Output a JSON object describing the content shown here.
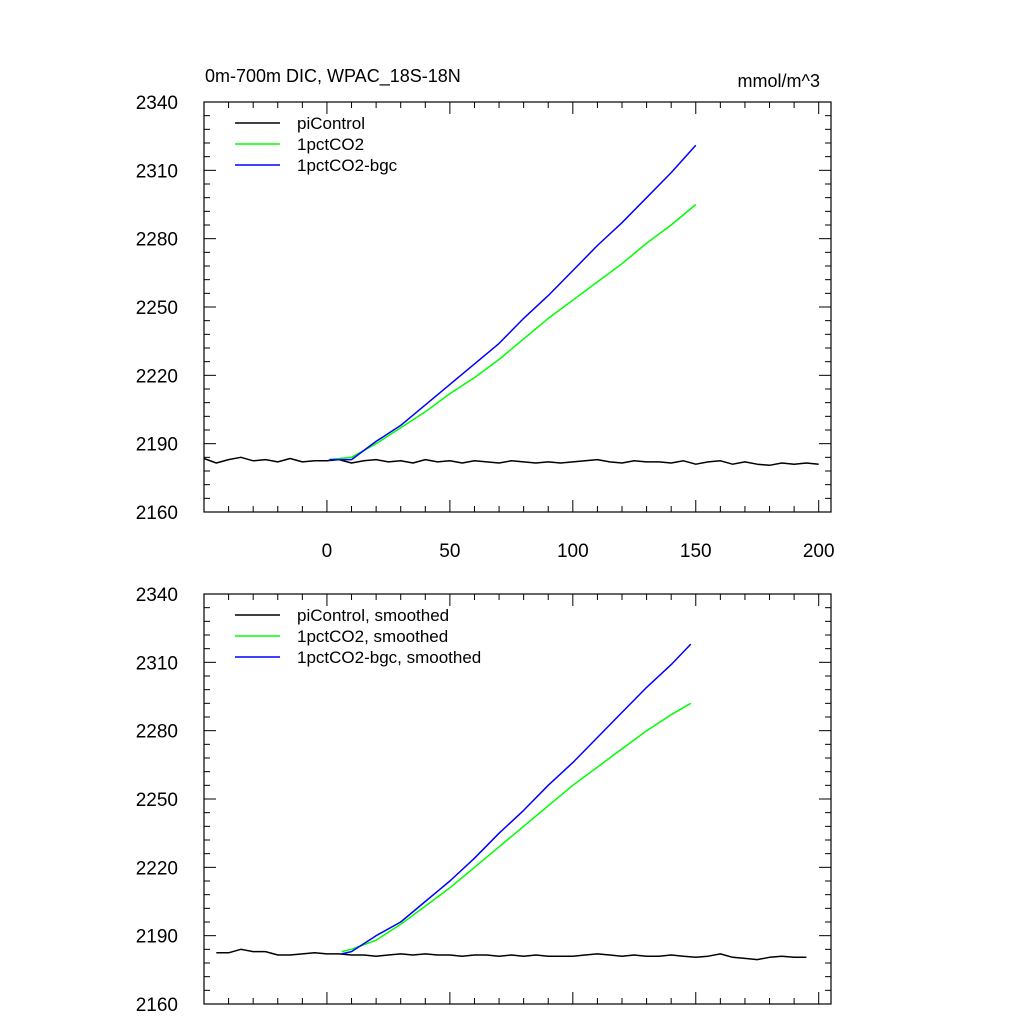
{
  "figure": {
    "title_left": "0m-700m DIC, WPAC_18S-18N",
    "units": "mmol/m^3"
  },
  "chart_data": [
    {
      "type": "line",
      "panel": "top",
      "title": "0m-700m DIC, WPAC_18S-18N",
      "units": "mmol/m^3",
      "xlim": [
        -50,
        205
      ],
      "ylim": [
        2160,
        2340
      ],
      "xticks": [
        0,
        50,
        100,
        150,
        200
      ],
      "yticks": [
        2160,
        2190,
        2220,
        2250,
        2280,
        2310,
        2340
      ],
      "x_tick_labels_shown": true,
      "legend_position": "top-left",
      "series": [
        {
          "name": "piControl",
          "color": "#000000",
          "x": [
            -50,
            -45,
            -40,
            -35,
            -30,
            -25,
            -20,
            -15,
            -10,
            -5,
            0,
            5,
            10,
            15,
            20,
            25,
            30,
            35,
            40,
            45,
            50,
            55,
            60,
            65,
            70,
            75,
            80,
            85,
            90,
            95,
            100,
            105,
            110,
            115,
            120,
            125,
            130,
            135,
            140,
            145,
            150,
            155,
            160,
            165,
            170,
            175,
            180,
            185,
            190,
            195,
            200
          ],
          "y": [
            2183.5,
            2181.5,
            2183,
            2184,
            2182.5,
            2183,
            2182,
            2183.5,
            2182,
            2182.5,
            2182.5,
            2183,
            2181.5,
            2182.5,
            2183,
            2182,
            2182.5,
            2181.5,
            2183,
            2182,
            2182.5,
            2181.5,
            2182.5,
            2182,
            2181.5,
            2182.5,
            2182,
            2181.5,
            2182,
            2181.5,
            2182,
            2182.5,
            2183,
            2182,
            2181.5,
            2182.5,
            2182,
            2182,
            2181.5,
            2182.5,
            2181,
            2182,
            2182.5,
            2181,
            2182,
            2181,
            2180.5,
            2181.5,
            2181,
            2181.5,
            2181
          ]
        },
        {
          "name": "1pctCO2",
          "color": "#00ff00",
          "x": [
            1,
            10,
            20,
            30,
            40,
            50,
            60,
            70,
            80,
            90,
            100,
            110,
            120,
            130,
            140,
            150
          ],
          "y": [
            2183,
            2184,
            2190,
            2197,
            2204,
            2212,
            2219,
            2227,
            2236,
            2245,
            2253,
            2261,
            2269,
            2278,
            2286,
            2295
          ]
        },
        {
          "name": "1pctCO2-bgc",
          "color": "#0000ff",
          "x": [
            1,
            10,
            20,
            30,
            40,
            50,
            60,
            70,
            80,
            90,
            100,
            110,
            120,
            130,
            140,
            150
          ],
          "y": [
            2183,
            2183,
            2191,
            2198,
            2207,
            2216,
            2225,
            2234,
            2245,
            2255,
            2266,
            2277,
            2287,
            2298,
            2309,
            2321
          ]
        }
      ]
    },
    {
      "type": "line",
      "panel": "bottom",
      "xlim": [
        -50,
        205
      ],
      "ylim": [
        2160,
        2340
      ],
      "xticks": [
        0,
        50,
        100,
        150,
        200
      ],
      "yticks": [
        2160,
        2190,
        2220,
        2250,
        2280,
        2310,
        2340
      ],
      "x_tick_labels_shown": false,
      "legend_position": "top-left",
      "series": [
        {
          "name": "piControl, smoothed",
          "color": "#000000",
          "x": [
            -45,
            -40,
            -35,
            -30,
            -25,
            -20,
            -15,
            -10,
            -5,
            0,
            5,
            10,
            15,
            20,
            25,
            30,
            35,
            40,
            45,
            50,
            55,
            60,
            65,
            70,
            75,
            80,
            85,
            90,
            95,
            100,
            105,
            110,
            115,
            120,
            125,
            130,
            135,
            140,
            145,
            150,
            155,
            160,
            165,
            170,
            175,
            180,
            185,
            190,
            195
          ],
          "y": [
            2182.5,
            2182.5,
            2184,
            2183,
            2183,
            2181.5,
            2181.5,
            2182,
            2182.5,
            2182,
            2182,
            2181.5,
            2181.5,
            2181,
            2181.5,
            2182,
            2181.5,
            2182,
            2181.5,
            2181.5,
            2181,
            2181.5,
            2181.5,
            2181,
            2181.5,
            2181,
            2181.5,
            2181,
            2181,
            2181,
            2181.5,
            2182,
            2181.5,
            2181,
            2181.5,
            2181,
            2181,
            2181.5,
            2181,
            2180.5,
            2181,
            2182,
            2180.5,
            2180,
            2179.5,
            2180.5,
            2181,
            2180.5,
            2180.5
          ]
        },
        {
          "name": "1pctCO2, smoothed",
          "color": "#00ff00",
          "x": [
            6,
            10,
            20,
            30,
            40,
            50,
            60,
            70,
            80,
            90,
            100,
            110,
            120,
            130,
            140,
            148
          ],
          "y": [
            2183,
            2184,
            2188,
            2195,
            2203,
            2211,
            2220,
            2229,
            2238,
            2247,
            2256,
            2264,
            2272,
            2280,
            2287,
            2292
          ]
        },
        {
          "name": "1pctCO2-bgc, smoothed",
          "color": "#0000ff",
          "x": [
            6,
            10,
            20,
            30,
            40,
            50,
            60,
            70,
            80,
            90,
            100,
            110,
            120,
            130,
            140,
            148
          ],
          "y": [
            2182,
            2183,
            2190,
            2196,
            2205,
            2214,
            2224,
            2235,
            2245,
            2256,
            2266,
            2277,
            2288,
            2299,
            2309,
            2318
          ]
        }
      ]
    }
  ]
}
